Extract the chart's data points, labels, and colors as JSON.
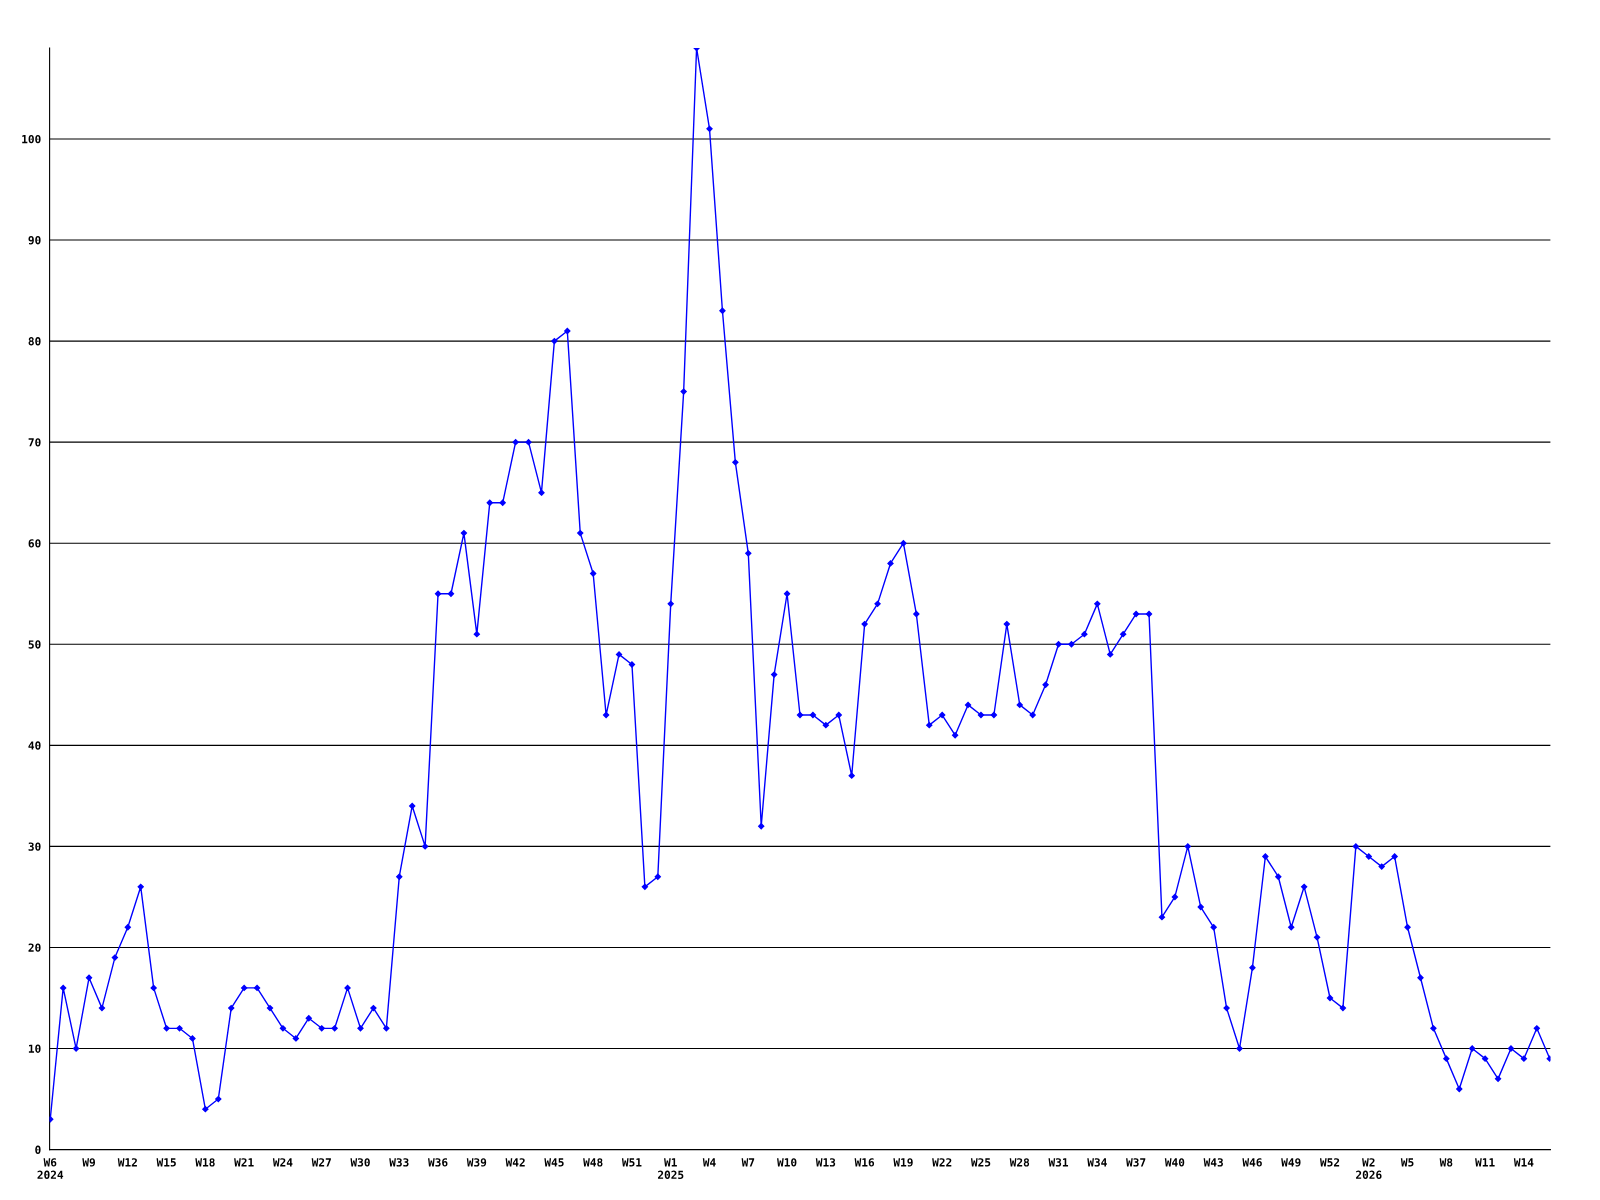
{
  "chart_data": {
    "type": "line",
    "categories": [
      "W6\n2024",
      null,
      null,
      "W9",
      null,
      null,
      "W12",
      null,
      null,
      "W15",
      null,
      null,
      "W18",
      null,
      null,
      "W21",
      null,
      null,
      "W24",
      null,
      null,
      "W27",
      null,
      null,
      "W30",
      null,
      null,
      "W33",
      null,
      null,
      "W36",
      null,
      null,
      "W39",
      null,
      null,
      "W42",
      null,
      null,
      "W45",
      null,
      null,
      "W48",
      null,
      null,
      "W51",
      null,
      null,
      "W1\n2025",
      null,
      null,
      "W4",
      null,
      null,
      "W7",
      null,
      null,
      "W10",
      null,
      null,
      "W13",
      null,
      null,
      "W16",
      null,
      null,
      "W19",
      null,
      null,
      "W22",
      null,
      null,
      "W25",
      null,
      null,
      "W28",
      null,
      null,
      "W31",
      null,
      null,
      "W34",
      null,
      null,
      "W37",
      null,
      null,
      "W40",
      null,
      null,
      "W43",
      null,
      null,
      "W46",
      null,
      null,
      "W49",
      null,
      null,
      "W52",
      null,
      null,
      "W2\n2026",
      null,
      null,
      "W5",
      null,
      null,
      "W8",
      null,
      null,
      "W11",
      null,
      null,
      "W14",
      null,
      null
    ],
    "series": [
      {
        "color": "#0000ff",
        "values": [
          3,
          16,
          10,
          17,
          14,
          19,
          22,
          26,
          16,
          12,
          12,
          11,
          4,
          5,
          14,
          16,
          16,
          14,
          12,
          11,
          13,
          12,
          12,
          16,
          12,
          14,
          12,
          27,
          34,
          30,
          55,
          55,
          61,
          51,
          64,
          64,
          70,
          70,
          65,
          80,
          81,
          61,
          57,
          43,
          49,
          48,
          26,
          27,
          54,
          75,
          109,
          101,
          83,
          68,
          59,
          32,
          47,
          55,
          43,
          43,
          42,
          43,
          37,
          52,
          54,
          58,
          60,
          53,
          42,
          43,
          41,
          44,
          43,
          43,
          52,
          44,
          43,
          46,
          50,
          50,
          51,
          54,
          49,
          51,
          53,
          53,
          23,
          25,
          30,
          24,
          22,
          14,
          10,
          18,
          29,
          27,
          22,
          26,
          21,
          15,
          14,
          30,
          29,
          28,
          29,
          22,
          17,
          12,
          9,
          6,
          10,
          9,
          7,
          10,
          9,
          12,
          9
        ]
      }
    ],
    "ylim": [
      0,
      109
    ],
    "yticks": [
      0,
      10,
      20,
      30,
      40,
      50,
      60,
      70,
      80,
      90,
      100
    ],
    "grid": "y",
    "marker": "diamond",
    "line_style": "solid"
  }
}
